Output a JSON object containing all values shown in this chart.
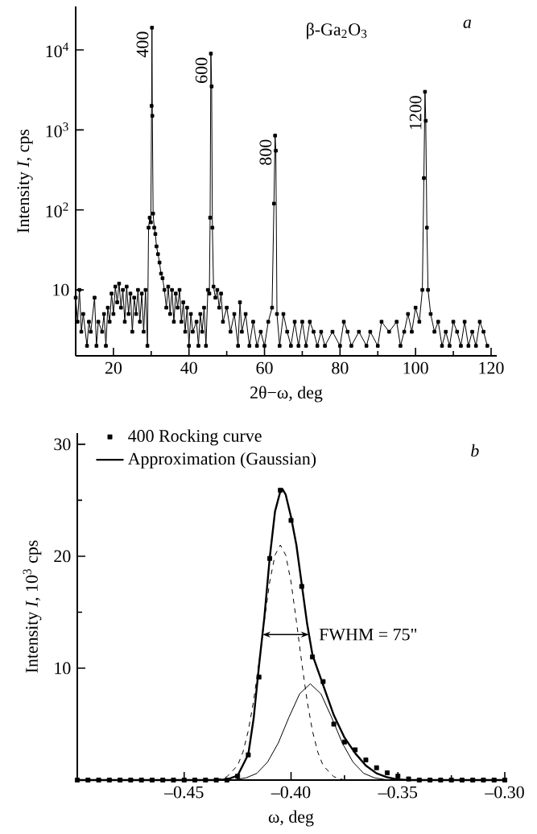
{
  "chart_data": [
    {
      "type": "line",
      "xlabel": "2θ−ω, deg",
      "ylabel": "Intensity *I*, cps",
      "xlim": [
        10,
        121.5
      ],
      "ylim": [
        1.5,
        35000
      ],
      "xticks": [
        20,
        40,
        60,
        80,
        100,
        120
      ],
      "yticks": [
        10,
        {
          "value": 100,
          "label": "10$^{2}$"
        },
        {
          "value": 1000,
          "label": "10$^{3}$"
        },
        {
          "value": 10000,
          "label": "10$^{4}$"
        }
      ],
      "log": "y",
      "grid": false,
      "legend": false,
      "marker": "square",
      "series": [
        {
          "color": "#000000",
          "x": [
            10,
            10.5,
            11,
            11.5,
            12,
            13,
            13.5,
            14,
            15,
            15.5,
            16,
            17,
            17.5,
            18,
            18.5,
            19,
            19.5,
            20,
            20.5,
            21,
            21.5,
            22,
            22.5,
            23,
            23.5,
            24,
            24.5,
            25,
            25.5,
            26,
            26.5,
            27,
            27.5,
            28,
            28.5,
            29,
            29.3,
            29.6,
            29.9,
            30.1,
            30.2,
            30.3,
            30.5,
            30.8,
            31.1,
            31.4,
            31.8,
            32.2,
            32.6,
            33,
            33.5,
            34,
            34.5,
            35,
            35.5,
            36,
            36.5,
            37,
            37.5,
            38,
            38.5,
            39,
            39.5,
            40,
            40.5,
            41,
            42,
            42.5,
            43,
            43.5,
            44,
            44.5,
            45,
            45.4,
            45.6,
            45.8,
            46,
            46.2,
            46.5,
            47,
            47.5,
            48,
            48.5,
            49,
            50,
            51,
            52,
            53,
            53.5,
            54,
            55,
            56,
            57,
            58,
            59,
            60,
            61,
            62,
            62.5,
            62.8,
            63,
            63.3,
            64,
            65,
            66,
            67,
            68,
            69,
            70,
            71,
            72,
            73,
            74,
            75,
            76,
            78,
            80,
            81,
            82,
            83,
            85,
            87,
            88,
            90,
            91,
            93,
            95,
            96,
            97,
            98,
            99,
            100,
            101,
            101.8,
            102.2,
            102.5,
            102.7,
            103,
            103.3,
            104,
            105,
            106,
            107,
            108,
            109,
            110,
            111,
            112,
            113,
            114,
            115,
            116,
            117,
            118,
            119
          ],
          "values": [
            8,
            4,
            10,
            3,
            5,
            2,
            4,
            3,
            8,
            2,
            4,
            3,
            5,
            2,
            6,
            4,
            9,
            5,
            11,
            7,
            12,
            6,
            10,
            4,
            11,
            5,
            9,
            3,
            8,
            5,
            10,
            4,
            9,
            3,
            10,
            2,
            60,
            80,
            70,
            2000,
            19000,
            1500,
            90,
            60,
            50,
            35,
            28,
            22,
            16,
            14,
            10,
            6,
            11,
            5,
            10,
            4,
            9,
            6,
            10,
            4,
            7,
            3,
            6,
            2,
            5,
            3,
            4,
            2,
            5,
            3,
            6,
            2,
            10,
            9,
            80,
            9000,
            3500,
            60,
            11,
            8,
            10,
            6,
            9,
            4,
            6,
            3,
            5,
            2,
            7,
            3,
            5,
            2,
            4,
            2,
            3,
            2,
            4,
            6,
            120,
            850,
            550,
            5,
            2,
            5,
            3,
            2,
            4,
            2,
            4,
            2,
            4,
            3,
            2,
            3,
            2,
            3,
            2,
            4,
            3,
            2,
            3,
            2,
            3,
            2,
            4,
            3,
            4,
            2,
            3,
            5,
            3,
            6,
            4,
            10,
            250,
            3000,
            1300,
            60,
            10,
            5,
            3,
            4,
            2,
            3,
            2,
            4,
            3,
            2,
            4,
            2,
            3,
            2,
            4,
            3,
            2
          ]
        }
      ],
      "annotations": [
        {
          "text": "400",
          "x": 30.2,
          "y": 19000
        },
        {
          "text": "600",
          "x": 45.8,
          "y": 9000
        },
        {
          "text": "800",
          "x": 62.8,
          "y": 850
        },
        {
          "text": "1200",
          "x": 102.5,
          "y": 3000
        },
        "β-Ga$_{2}$O$_{3}$",
        "a"
      ]
    },
    {
      "type": "line",
      "xlabel": "ω, deg",
      "ylabel": "Intensity *I*, 10$^{3}$ cps",
      "xlim": [
        -0.5,
        -0.3
      ],
      "ylim": [
        0,
        31
      ],
      "xticks": [
        {
          "value": -0.45,
          "label": "–0.45"
        },
        {
          "value": -0.4,
          "label": "–0.40"
        },
        {
          "value": -0.35,
          "label": "–0.35"
        },
        {
          "value": -0.3,
          "label": "–0.30"
        }
      ],
      "yticks": [
        10,
        20,
        30
      ],
      "grid": false,
      "legend": "top left",
      "series": [
        {
          "type": "scatter",
          "name": "400 Rocking curve",
          "color": "#000000",
          "marker": "square",
          "x": [
            -0.5,
            -0.495,
            -0.49,
            -0.485,
            -0.48,
            -0.475,
            -0.47,
            -0.465,
            -0.46,
            -0.455,
            -0.45,
            -0.445,
            -0.44,
            -0.435,
            -0.43,
            -0.425,
            -0.42,
            -0.415,
            -0.41,
            -0.405,
            -0.4,
            -0.395,
            -0.39,
            -0.385,
            -0.38,
            -0.375,
            -0.37,
            -0.365,
            -0.36,
            -0.355,
            -0.35,
            -0.345,
            -0.34,
            -0.335,
            -0.33,
            -0.325,
            -0.32,
            -0.315,
            -0.31,
            -0.305,
            -0.3
          ],
          "values": [
            0,
            0,
            0,
            0,
            0,
            0,
            0,
            0,
            0,
            0,
            0,
            0,
            0,
            0,
            0,
            0.35,
            2.25,
            9.2,
            19.8,
            25.9,
            23.2,
            17.3,
            11.0,
            8.8,
            5.0,
            3.4,
            2.7,
            1.8,
            1.1,
            0.65,
            0.35,
            0.1,
            0,
            0,
            0,
            0,
            0,
            0,
            0,
            0,
            0
          ]
        },
        {
          "type": "line",
          "name": "Approximation (Gaussian)",
          "color": "#000000",
          "marker": "none",
          "line_style": "solid",
          "x": [
            -0.5,
            -0.435,
            -0.43,
            -0.425,
            -0.42,
            -0.4175,
            -0.415,
            -0.4125,
            -0.41,
            -0.4075,
            -0.405,
            -0.404,
            -0.4025,
            -0.4,
            -0.3975,
            -0.395,
            -0.3925,
            -0.39,
            -0.385,
            -0.38,
            -0.375,
            -0.37,
            -0.365,
            -0.36,
            -0.355,
            -0.35,
            -0.345,
            -0.3
          ],
          "values": [
            0,
            0,
            0.05,
            0.4,
            2.3,
            5.5,
            10.2,
            14.5,
            19.8,
            24,
            25.8,
            26,
            25.5,
            23.5,
            21,
            17.5,
            14,
            11.2,
            8.5,
            5.8,
            3.8,
            2.4,
            1.3,
            0.6,
            0.25,
            0.05,
            0,
            0
          ]
        },
        {
          "type": "line",
          "color": "#000000",
          "marker": "none",
          "line_style": "dashed",
          "x": [
            -0.435,
            -0.43,
            -0.425,
            -0.4225,
            -0.42,
            -0.4175,
            -0.415,
            -0.4125,
            -0.41,
            -0.4075,
            -0.405,
            -0.4025,
            -0.4,
            -0.3975,
            -0.395,
            -0.3925,
            -0.39,
            -0.3875,
            -0.385,
            -0.38,
            -0.375
          ],
          "values": [
            0,
            0.3,
            1.3,
            2.5,
            4.4,
            7.1,
            10.5,
            14.2,
            17.7,
            20.1,
            21,
            20.1,
            17.7,
            14.2,
            10.5,
            7.1,
            4.4,
            2.5,
            1.3,
            0.3,
            0
          ]
        },
        {
          "type": "line",
          "color": "#000000",
          "marker": "none",
          "line_style": "solid",
          "x": [
            -0.431,
            -0.426,
            -0.421,
            -0.416,
            -0.411,
            -0.406,
            -0.401,
            -0.396,
            -0.391,
            -0.386,
            -0.381,
            -0.376,
            -0.371,
            -0.366,
            -0.361,
            -0.356,
            -0.351
          ],
          "values": [
            0,
            0.05,
            0.2,
            0.6,
            1.6,
            3.3,
            5.6,
            7.7,
            8.6,
            7.7,
            5.6,
            3.3,
            1.6,
            0.6,
            0.2,
            0.05,
            0
          ]
        }
      ],
      "annotations": [
        "FWHM = 75\"",
        "b"
      ]
    }
  ]
}
